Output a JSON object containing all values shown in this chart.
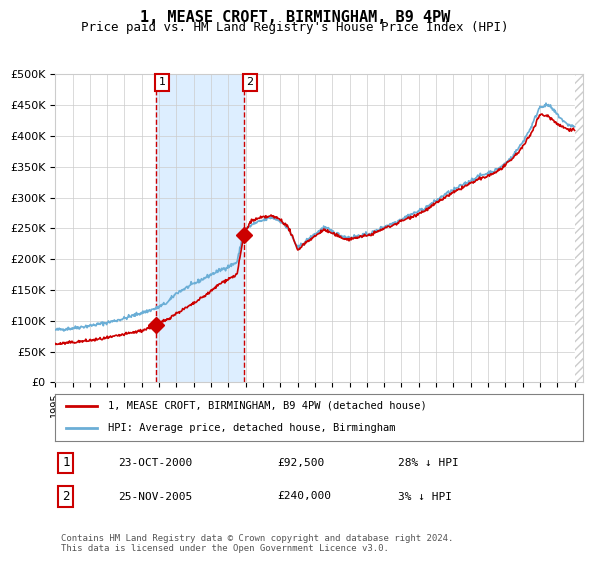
{
  "title": "1, MEASE CROFT, BIRMINGHAM, B9 4PW",
  "subtitle": "Price paid vs. HM Land Registry's House Price Index (HPI)",
  "ylabel_ticks": [
    "£0",
    "£50K",
    "£100K",
    "£150K",
    "£200K",
    "£250K",
    "£300K",
    "£350K",
    "£400K",
    "£450K",
    "£500K"
  ],
  "ytick_vals": [
    0,
    50000,
    100000,
    150000,
    200000,
    250000,
    300000,
    350000,
    400000,
    450000,
    500000
  ],
  "ylim": [
    0,
    500000
  ],
  "xlim_start": 1995.0,
  "xlim_end": 2025.5,
  "hpi_color": "#6baed6",
  "price_color": "#cc0000",
  "shade_color": "#ddeeff",
  "point1_x": 2000.81,
  "point1_y": 92500,
  "point2_x": 2005.9,
  "point2_y": 240000,
  "vline1_x": 2000.81,
  "vline2_x": 2005.9,
  "shade_x1": 2000.81,
  "shade_x2": 2005.9,
  "legend_line1": "1, MEASE CROFT, BIRMINGHAM, B9 4PW (detached house)",
  "legend_line2": "HPI: Average price, detached house, Birmingham",
  "table_row1_num": "1",
  "table_row1_date": "23-OCT-2000",
  "table_row1_price": "£92,500",
  "table_row1_hpi": "28% ↓ HPI",
  "table_row2_num": "2",
  "table_row2_date": "25-NOV-2005",
  "table_row2_price": "£240,000",
  "table_row2_hpi": "3% ↓ HPI",
  "footer": "Contains HM Land Registry data © Crown copyright and database right 2024.\nThis data is licensed under the Open Government Licence v3.0.",
  "background_color": "#ffffff",
  "grid_color": "#cccccc",
  "hatch_color": "#cccccc"
}
